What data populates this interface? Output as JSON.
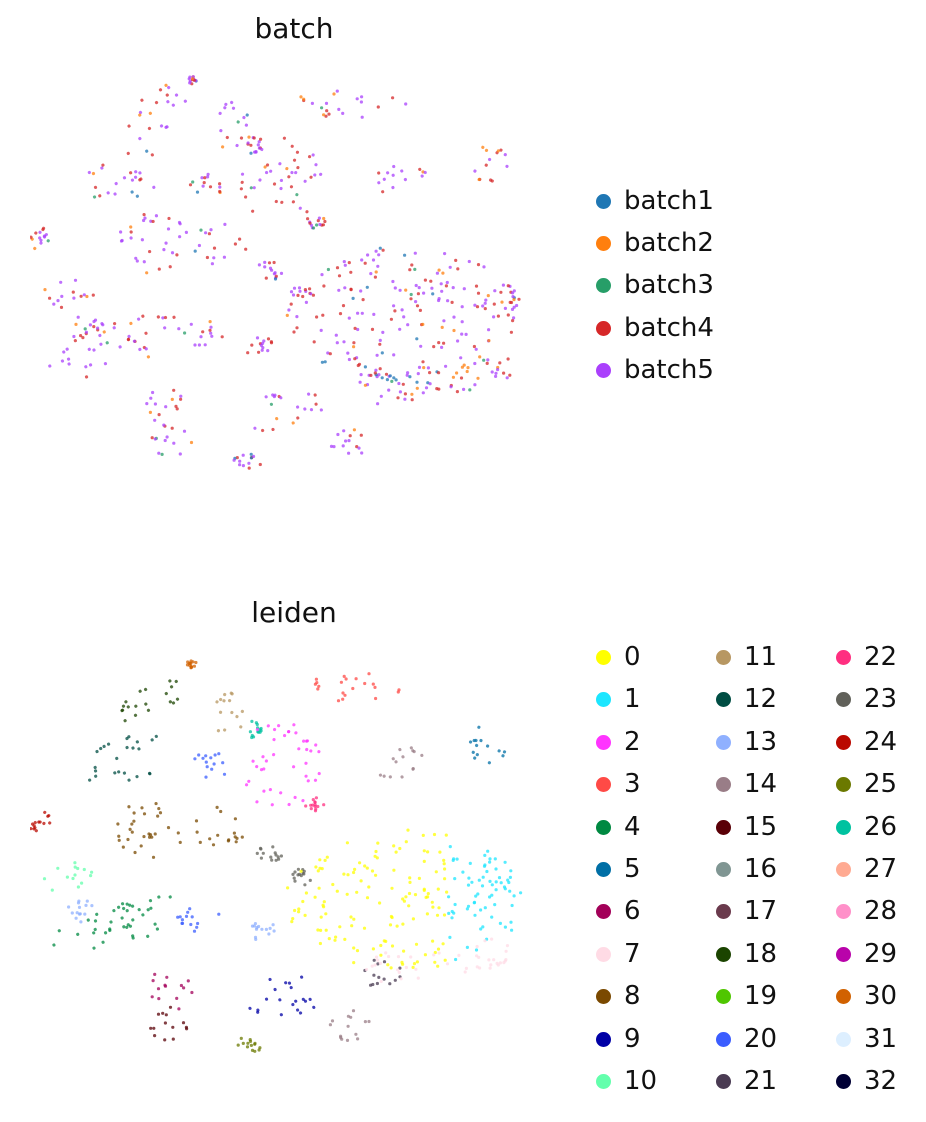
{
  "chart_data": [
    {
      "type": "scatter",
      "title": "batch",
      "xlabel": "",
      "ylabel": "",
      "grid": false,
      "legend_position": "right",
      "categories": [
        "batch1",
        "batch2",
        "batch3",
        "batch4",
        "batch5"
      ],
      "colors": [
        "#1f77b4",
        "#ff7f0e",
        "#279e68",
        "#d62728",
        "#aa40fc"
      ]
    },
    {
      "type": "scatter",
      "title": "leiden",
      "xlabel": "",
      "ylabel": "",
      "grid": false,
      "legend_position": "right",
      "categories": [
        "0",
        "1",
        "2",
        "3",
        "4",
        "5",
        "6",
        "7",
        "8",
        "9",
        "10",
        "11",
        "12",
        "13",
        "14",
        "15",
        "16",
        "17",
        "18",
        "19",
        "20",
        "21",
        "22",
        "23",
        "24",
        "25",
        "26",
        "27",
        "28",
        "29",
        "30",
        "31",
        "32"
      ],
      "colors": [
        "#ffff00",
        "#1ce6ff",
        "#ff34ff",
        "#ff4a46",
        "#008941",
        "#006fa6",
        "#a30059",
        "#ffdbe5",
        "#7a4900",
        "#0000a6",
        "#63ffac",
        "#b79762",
        "#004d43",
        "#8fb0ff",
        "#997d87",
        "#5a0007",
        "#809693",
        "#6a3a4c",
        "#1b4400",
        "#4fc601",
        "#3b5dff",
        "#4a3b53",
        "#ff2f80",
        "#61615a",
        "#ba0900",
        "#6b7900",
        "#00c2a0",
        "#ffaa92",
        "#ff90c9",
        "#b903aa",
        "#d16100",
        "#ddefff",
        "#000035"
      ]
    }
  ]
}
